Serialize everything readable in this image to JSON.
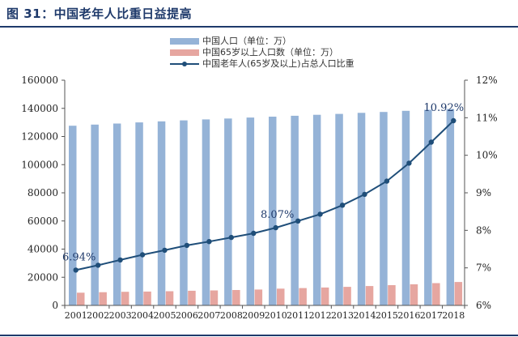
{
  "figure": {
    "title": "图 31：中国老年人比重日益提高"
  },
  "chart_data": {
    "type": "bar",
    "categories": [
      "2001",
      "2002",
      "2003",
      "2004",
      "2005",
      "2006",
      "2007",
      "2008",
      "2009",
      "2010",
      "2011",
      "2012",
      "2013",
      "2014",
      "2015",
      "2016",
      "2017",
      "2018"
    ],
    "series": [
      {
        "name": "中国人口（单位：万）",
        "type": "bar",
        "axis": "left",
        "color": "#95b3d7",
        "values": [
          127627,
          128453,
          129227,
          129988,
          130756,
          131448,
          132129,
          132802,
          133450,
          134091,
          134735,
          135404,
          136072,
          136782,
          137462,
          138271,
          139008,
          139538
        ]
      },
      {
        "name": "中国65岁以上人口数（单位：万）",
        "type": "bar",
        "axis": "left",
        "color": "#e6a6a0",
        "values": [
          9062,
          9377,
          9692,
          9857,
          10055,
          10419,
          10636,
          10956,
          11307,
          11894,
          12288,
          12714,
          13161,
          13755,
          14386,
          15003,
          15831,
          16658
        ]
      },
      {
        "name": "中国老年人(65岁及以上)占总人口比重",
        "type": "line",
        "axis": "right",
        "color": "#1f4e79",
        "values": [
          6.94,
          7.07,
          7.21,
          7.35,
          7.47,
          7.6,
          7.7,
          7.81,
          7.92,
          8.07,
          8.25,
          8.43,
          8.67,
          8.96,
          9.31,
          9.79,
          10.35,
          10.92
        ]
      }
    ],
    "y_left": {
      "min": 0,
      "max": 160000,
      "step": 20000,
      "ticks": [
        "0",
        "20000",
        "40000",
        "60000",
        "80000",
        "100000",
        "120000",
        "140000",
        "160000"
      ]
    },
    "y_right": {
      "min": 6,
      "max": 12,
      "step": 1,
      "ticks": [
        "6%",
        "7%",
        "8%",
        "9%",
        "10%",
        "11%",
        "12%"
      ]
    },
    "annotations": [
      {
        "text": "6.94%",
        "index": 0
      },
      {
        "text": "8.07%",
        "index": 9
      },
      {
        "text": "10.92%",
        "index": 17
      }
    ],
    "grid": false,
    "legend_position": "top-center"
  }
}
